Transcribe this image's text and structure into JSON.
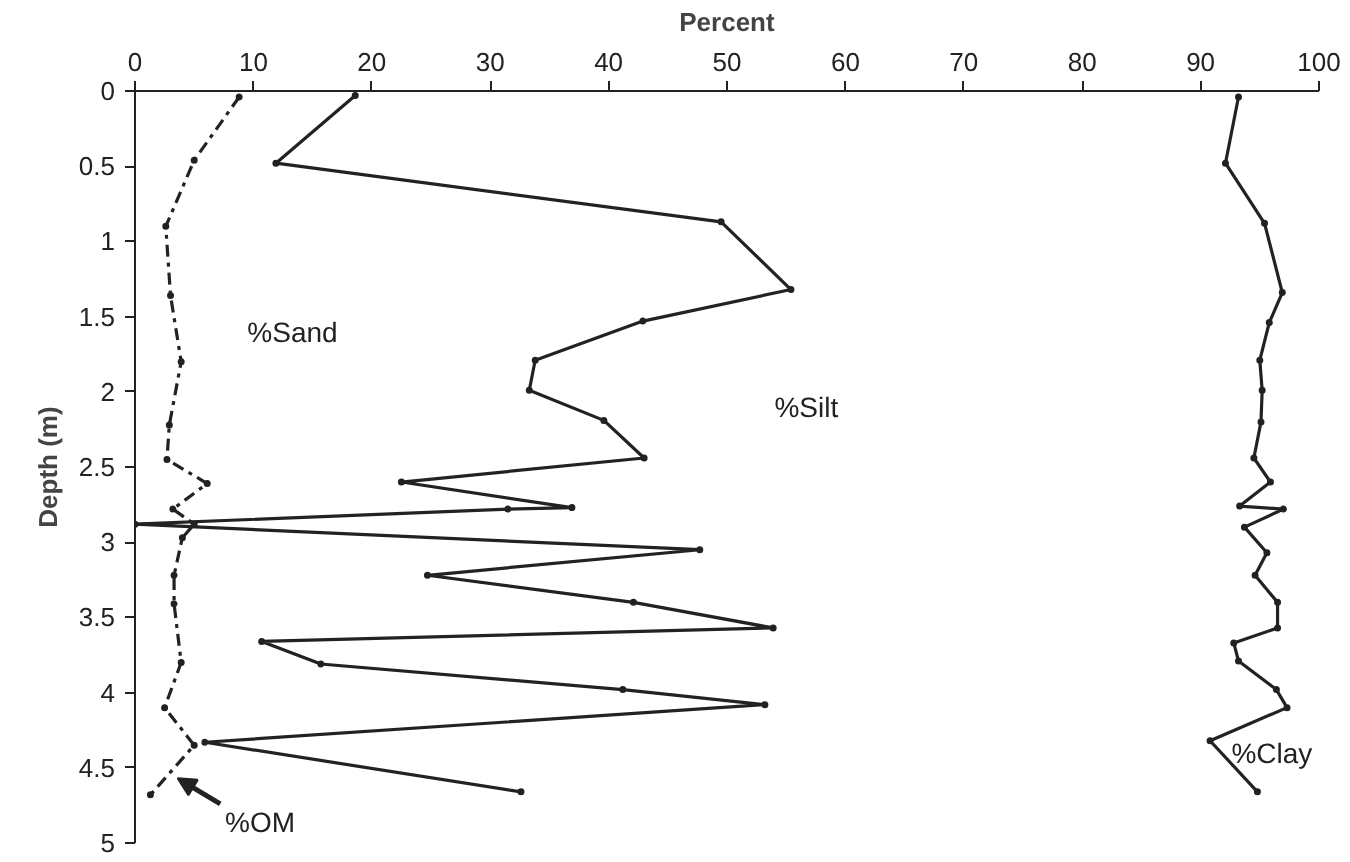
{
  "chart_data": {
    "type": "line",
    "xlabel": "Percent",
    "ylabel": "Depth (m)",
    "xlim": [
      0,
      100
    ],
    "ylim": [
      5,
      0
    ],
    "xticks": [
      0,
      10,
      20,
      30,
      40,
      50,
      60,
      70,
      80,
      90,
      100
    ],
    "yticks": [
      0,
      {
        "value": 0.5,
        "label": "0.5"
      },
      1,
      {
        "value": 1.5,
        "label": "1.5"
      },
      2,
      {
        "value": 2.5,
        "label": "2.5"
      },
      3,
      {
        "value": 3.5,
        "label": "3.5"
      },
      4,
      {
        "value": 4.5,
        "label": "4.5"
      },
      5
    ],
    "grid": false,
    "marker": "circle",
    "series": [
      {
        "color": "#222222",
        "line_style": "solid",
        "x": [
          18.6,
          11.9,
          49.5,
          55.4,
          42.9,
          33.8,
          33.3,
          39.6,
          43.0,
          22.5,
          36.9,
          31.5,
          0,
          47.7,
          24.7,
          42.1,
          53.9,
          10.7,
          15.7,
          41.2,
          53.2,
          5.9,
          32.6
        ],
        "values": [
          0.03,
          0.48,
          0.87,
          1.32,
          1.53,
          1.79,
          1.99,
          2.19,
          2.44,
          2.6,
          2.77,
          2.78,
          2.88,
          3.05,
          3.22,
          3.4,
          3.57,
          3.66,
          3.81,
          3.98,
          4.08,
          4.33,
          4.66
        ]
      },
      {
        "color": "#222222",
        "line_style": "solid",
        "x": [
          93.2,
          92.1,
          95.4,
          96.9,
          95.8,
          95.0,
          95.2,
          95.1,
          94.5,
          95.9,
          93.3,
          97.0,
          93.7,
          95.6,
          94.6,
          96.5,
          96.5,
          92.8,
          93.2,
          96.4,
          97.3,
          90.8,
          94.8
        ],
        "values": [
          0.04,
          0.48,
          0.88,
          1.34,
          1.54,
          1.79,
          1.99,
          2.2,
          2.44,
          2.6,
          2.76,
          2.78,
          2.9,
          3.07,
          3.22,
          3.4,
          3.57,
          3.67,
          3.79,
          3.98,
          4.1,
          4.32,
          4.66
        ]
      },
      {
        "color": "#222222",
        "line_style": "dashed",
        "x": [
          8.8,
          5.0,
          2.6,
          3.0,
          3.9,
          2.9,
          2.7,
          6.1,
          3.2,
          5.0,
          4.0,
          3.3,
          3.3,
          3.9,
          2.5,
          5.0,
          1.3
        ],
        "values": [
          0.04,
          0.46,
          0.9,
          1.36,
          1.8,
          2.22,
          2.45,
          2.61,
          2.78,
          2.88,
          2.97,
          3.22,
          3.41,
          3.8,
          4.1,
          4.35,
          4.68
        ]
      }
    ],
    "annotations": [
      "%Sand",
      "%Silt",
      "%Clay",
      {
        "text": "%OM",
        "x": 3.6,
        "y": 4.57
      }
    ]
  }
}
